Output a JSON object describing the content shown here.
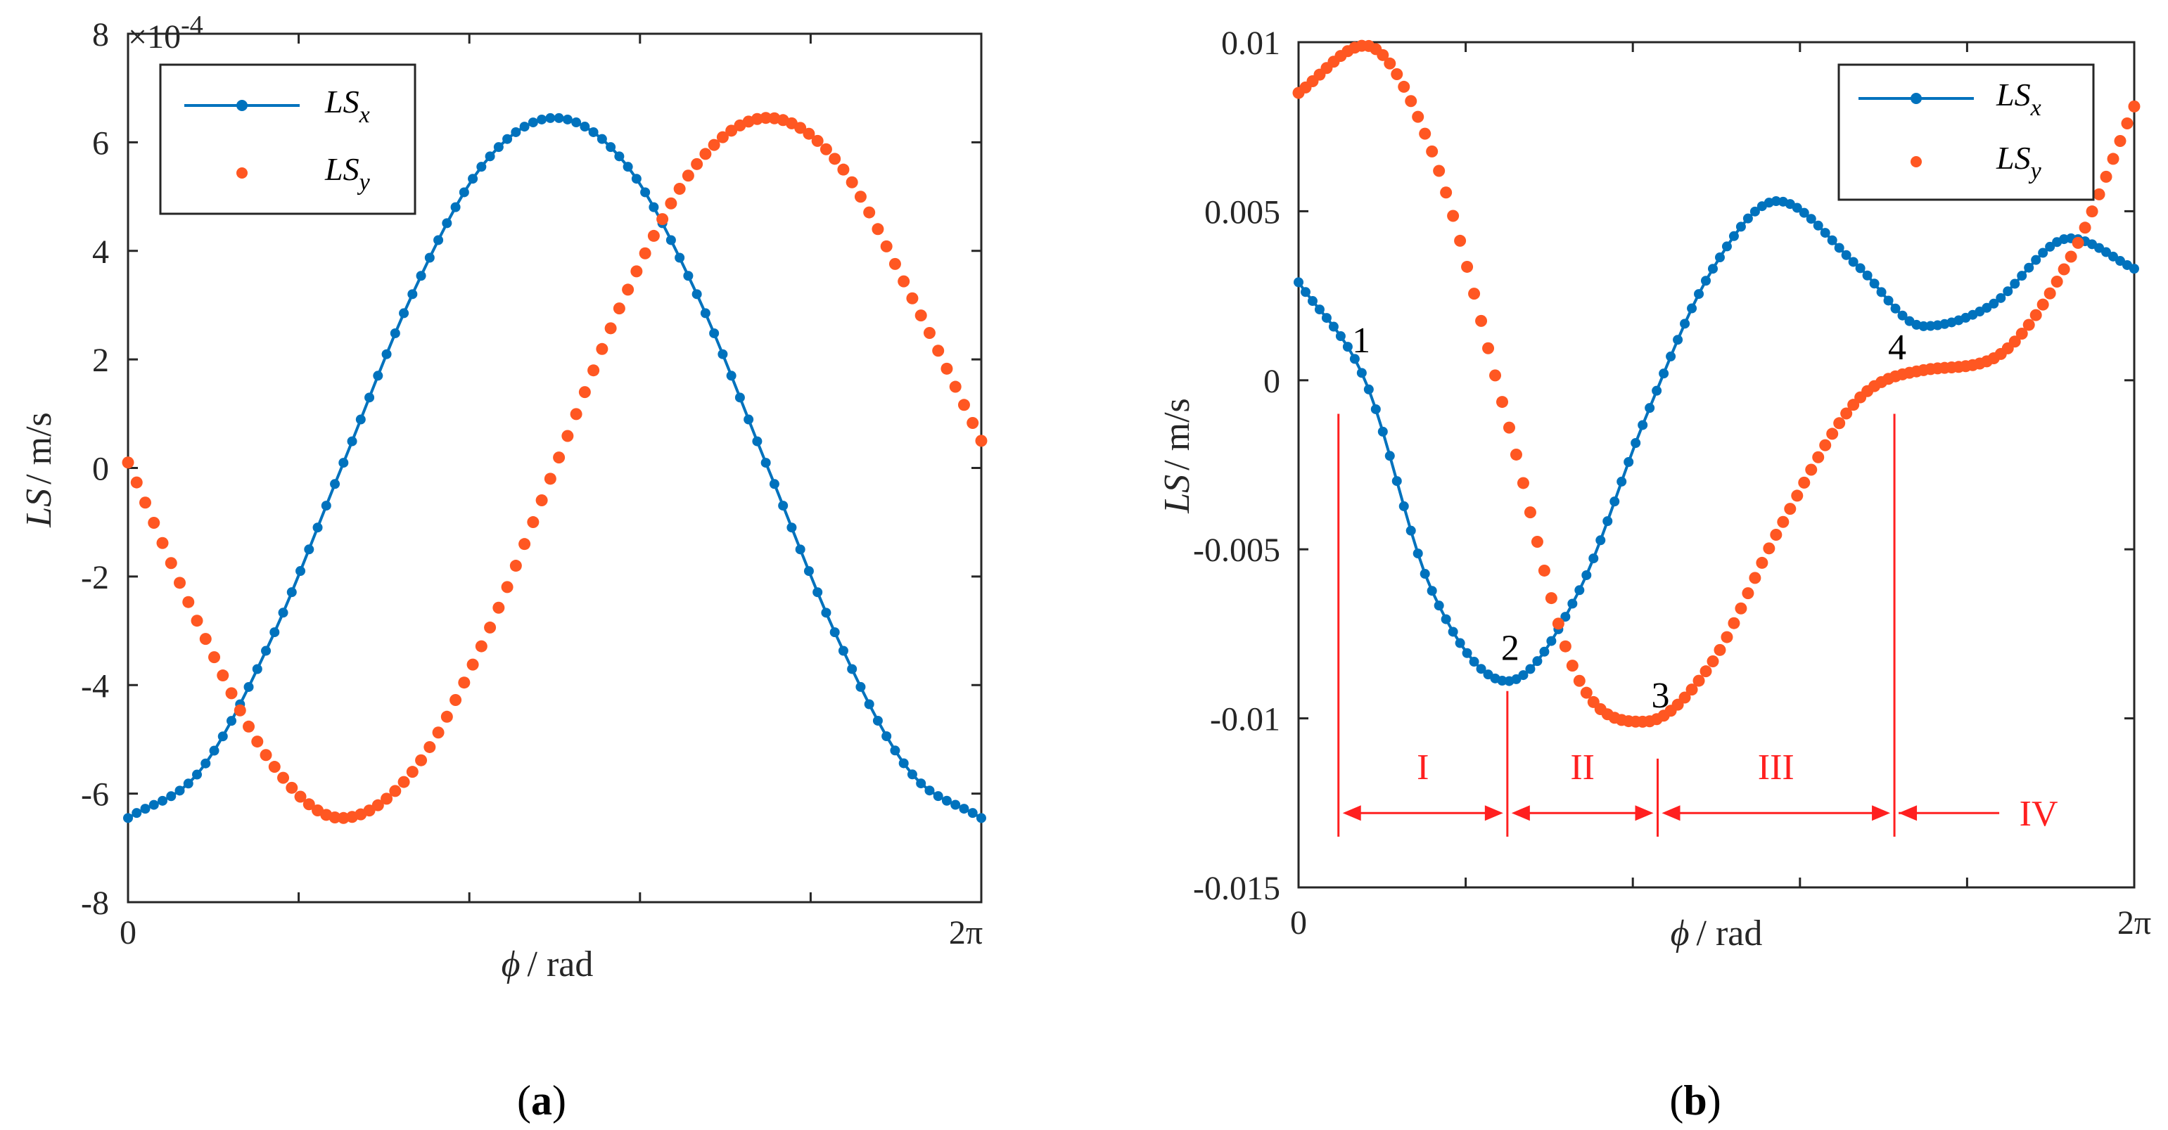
{
  "colors": {
    "lsx": "#0072bd",
    "lsy": "#ff5722",
    "annotation": "#ff2020",
    "axis": "#262626"
  },
  "chart_data": [
    {
      "id": "a",
      "type": "line",
      "panel_label": "(a)",
      "panel_label_letter": "a",
      "x_range": [
        0,
        6.2832
      ],
      "xlim_labels": [
        "0",
        "2π"
      ],
      "ylim": [
        -8,
        8
      ],
      "y_ticks": [
        -8,
        -6,
        -4,
        -2,
        0,
        2,
        4,
        6,
        8
      ],
      "y_tick_labels": [
        "-8",
        "-6",
        "-4",
        "-2",
        "0",
        "2",
        "4",
        "6",
        "8"
      ],
      "y_exponent": "×10",
      "y_exponent_power": "-4",
      "xlabel": {
        "symbol": "ϕ",
        "unit": "/ rad"
      },
      "ylabel": {
        "symbol": "LS",
        "unit": "/  m/s"
      },
      "legend": {
        "position": "top-left",
        "entries": [
          {
            "base": "LS",
            "sub": "x",
            "style": "line-marker"
          },
          {
            "base": "LS",
            "sub": "y",
            "style": "markers"
          }
        ]
      },
      "series": [
        {
          "name": "LSx",
          "style": "line-marker",
          "points": 100,
          "x": [
            0,
            0.524,
            1.047,
            1.571,
            2.094,
            2.618,
            3.142,
            3.665,
            4.189,
            4.712,
            5.236,
            5.76,
            6.283
          ],
          "y": [
            -6.45,
            -5.6,
            -3.2,
            0.0,
            3.2,
            5.6,
            6.45,
            5.6,
            3.2,
            0.0,
            -3.2,
            -5.6,
            -6.45
          ]
        },
        {
          "name": "LSy",
          "style": "markers",
          "points": 100,
          "x": [
            0,
            0.524,
            1.047,
            1.571,
            2.094,
            2.618,
            3.142,
            3.665,
            4.189,
            4.712,
            5.236,
            5.76,
            6.283
          ],
          "y": [
            0.1,
            -2.9,
            -5.4,
            -6.45,
            -5.6,
            -3.2,
            0.0,
            3.2,
            5.6,
            6.45,
            5.6,
            3.2,
            0.5
          ]
        }
      ]
    },
    {
      "id": "b",
      "type": "line",
      "panel_label": "(b)",
      "panel_label_letter": "b",
      "x_range": [
        0,
        6.2832
      ],
      "xlim_labels": [
        "0",
        "2π"
      ],
      "ylim": [
        -0.015,
        0.01
      ],
      "y_ticks": [
        -0.015,
        -0.01,
        -0.005,
        0,
        0.005,
        0.01
      ],
      "y_tick_labels": [
        "-0.015",
        "-0.01",
        "-0.005",
        "0",
        "0.005",
        "0.01"
      ],
      "xlabel": {
        "symbol": "ϕ",
        "unit": "/ rad"
      },
      "ylabel": {
        "symbol": "LS",
        "unit": "/  m/s"
      },
      "legend": {
        "position": "top-right",
        "entries": [
          {
            "base": "LS",
            "sub": "x",
            "style": "line-marker"
          },
          {
            "base": "LS",
            "sub": "y",
            "style": "markers"
          }
        ]
      },
      "series": [
        {
          "name": "LSx",
          "style": "line-marker",
          "points": 120,
          "x": [
            0,
            0.5,
            1.0,
            1.57,
            2.1,
            2.6,
            3.1,
            3.6,
            4.2,
            4.7,
            5.2,
            5.8,
            6.283
          ],
          "y": [
            0.0029,
            0.0,
            -0.0062,
            -0.0089,
            -0.0063,
            -0.0012,
            0.0032,
            0.0053,
            0.0034,
            0.0016,
            0.0022,
            0.0042,
            0.0033
          ]
        },
        {
          "name": "LSy",
          "style": "markers",
          "points": 120,
          "x": [
            0,
            0.5,
            1.0,
            1.57,
            2.1,
            2.6,
            3.1,
            3.6,
            4.2,
            4.7,
            5.2,
            5.8,
            6.283
          ],
          "y": [
            0.0085,
            0.0099,
            0.0068,
            -0.0012,
            -0.0088,
            -0.0101,
            -0.0084,
            -0.0045,
            -0.0006,
            0.0003,
            0.0006,
            0.0036,
            0.0081
          ]
        }
      ],
      "point_annotations": [
        {
          "label": "1",
          "x": 0.45,
          "y": 0.0002
        },
        {
          "label": "2",
          "x": 1.57,
          "y": -0.0089
        },
        {
          "label": "3",
          "x": 2.7,
          "y": -0.0103
        },
        {
          "label": "4",
          "x": 4.48,
          "y": 0.0
        }
      ],
      "boundaries": [
        {
          "x": 0.3,
          "y_top": -0.0007
        },
        {
          "x": 1.57,
          "y_top": -0.0089
        },
        {
          "x": 2.7,
          "y_top": -0.0109
        },
        {
          "x": 4.48,
          "y_top": -0.0007
        }
      ],
      "region_y": -0.0128,
      "regions": [
        {
          "label": "I",
          "from": 0.3,
          "to": 1.57
        },
        {
          "label": "II",
          "from": 1.57,
          "to": 2.7
        },
        {
          "label": "III",
          "from": 2.7,
          "to": 4.48
        },
        {
          "label": "IV",
          "from": 4.48,
          "to": 5.3,
          "one_sided": true
        }
      ]
    }
  ]
}
